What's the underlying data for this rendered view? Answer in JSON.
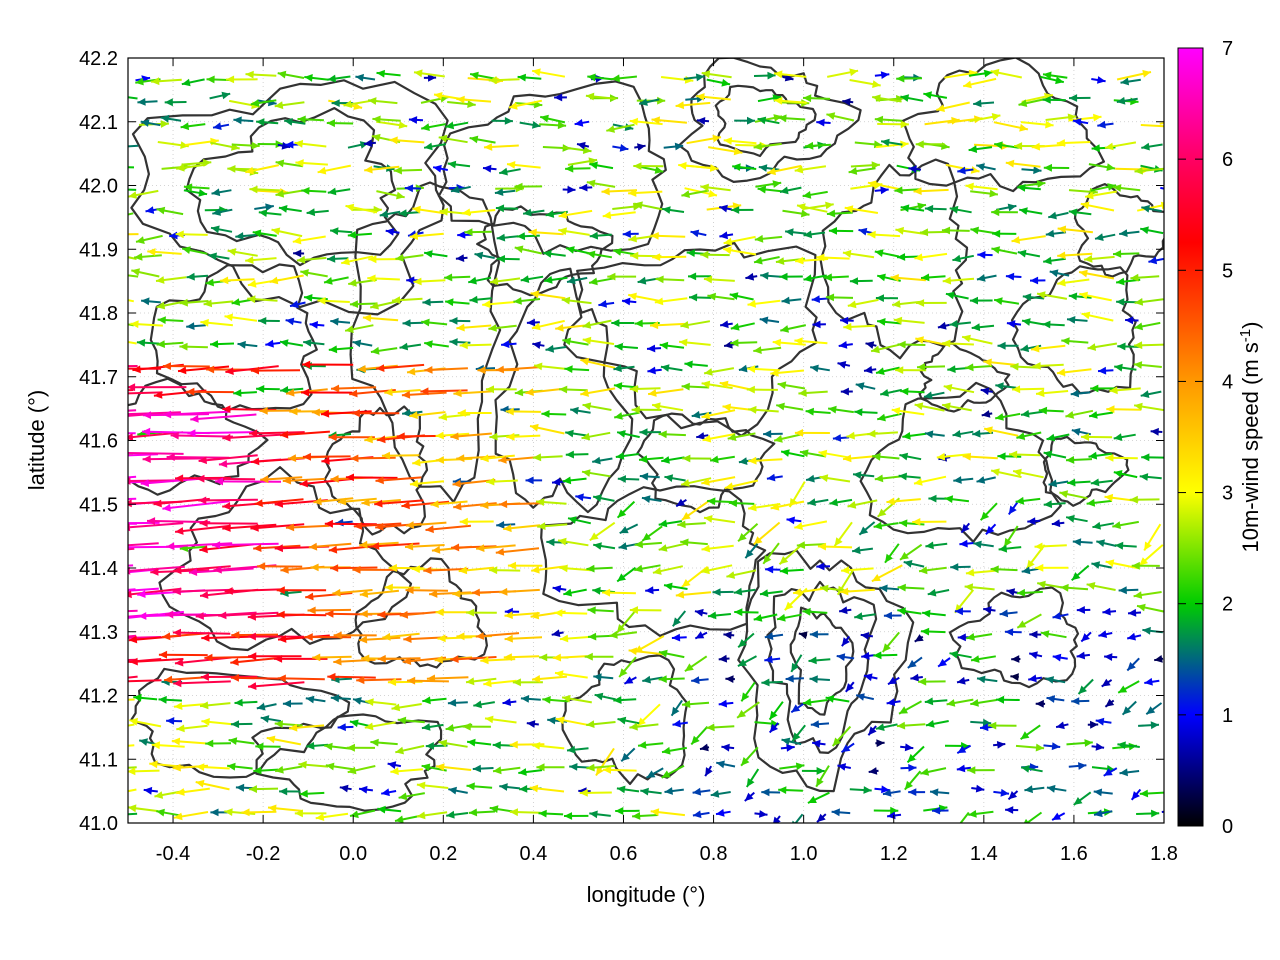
{
  "chart_data": {
    "type": "vector-field",
    "xlabel": "longitude (°)",
    "ylabel": "latitude (°)",
    "colorbar_label": "10m-wind speed (m s-1)",
    "xlim": [
      -0.5,
      1.8
    ],
    "ylim": [
      41.0,
      42.2
    ],
    "x_ticks": [
      -0.4,
      -0.2,
      0.0,
      0.2,
      0.4,
      0.6,
      0.8,
      1.0,
      1.2,
      1.4,
      1.6,
      1.8
    ],
    "x_tick_labels": [
      "-0.4",
      "-0.2",
      "0.0",
      "0.2",
      "0.4",
      "0.6",
      "0.8",
      "1.0",
      "1.2",
      "1.4",
      "1.6",
      "1.8"
    ],
    "y_ticks": [
      41.0,
      41.1,
      41.2,
      41.3,
      41.4,
      41.5,
      41.6,
      41.7,
      41.8,
      41.9,
      42.0,
      42.1,
      42.2
    ],
    "y_tick_labels": [
      "41.0",
      "41.1",
      "41.2",
      "41.3",
      "41.4",
      "41.5",
      "41.6",
      "41.7",
      "41.8",
      "41.9",
      "42.0",
      "42.1",
      "42.2"
    ],
    "colorbar_range": [
      0,
      7
    ],
    "colorbar_ticks": [
      0,
      1,
      2,
      3,
      4,
      5,
      6,
      7
    ],
    "colorbar_tick_labels": [
      "0",
      "1",
      "2",
      "3",
      "4",
      "5",
      "6",
      "7"
    ],
    "colormap": [
      "#000000",
      "#0000ff",
      "#00cc00",
      "#ffff00",
      "#ff9900",
      "#ff0000",
      "#ff00ff"
    ],
    "grid": true,
    "prevailing_direction": "westward (from east) over most of domain; eastward in parts of north and south-east",
    "max_speed_region": "west, latitude 41.3-41.65 (up to ~6.5 m s-1)",
    "contours": "terrain contour lines (dark grey)"
  }
}
